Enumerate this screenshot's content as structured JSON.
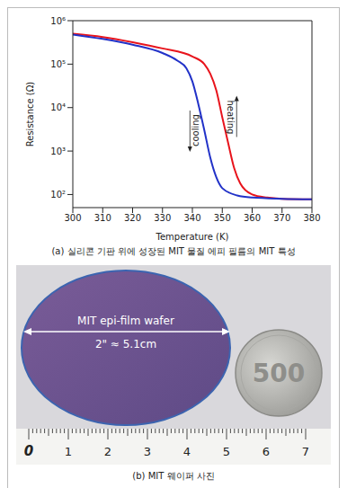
{
  "chart_data": {
    "type": "line",
    "title": "(a) 실리콘 기판 위에 성장된 MIT 물질 에피 필름의 MIT 특성",
    "x_label": "Temperature (K)",
    "y_label": "Resistance (Ω)",
    "log": "y",
    "grid": false,
    "xlim": [
      300,
      380
    ],
    "xticks": [
      300,
      310,
      320,
      330,
      340,
      350,
      360,
      370,
      380
    ],
    "ylim": [
      50,
      1000000
    ],
    "yticks": [
      {
        "value": 100,
        "label": "10²"
      },
      {
        "value": 1000,
        "label": "10³"
      },
      {
        "value": 10000,
        "label": "10⁴"
      },
      {
        "value": 100000,
        "label": "10⁵"
      },
      {
        "value": 1000000,
        "label": "10⁶"
      }
    ],
    "series": [
      {
        "name": "heating",
        "color": "#e8141c",
        "x": [
          300,
          310,
          320,
          330,
          340,
          344,
          346,
          348,
          350,
          352,
          354,
          356,
          360,
          365,
          370,
          380
        ],
        "values": [
          500000,
          420000,
          320000,
          230000,
          150000,
          100000,
          60000,
          25000,
          6000,
          1500,
          400,
          180,
          100,
          85,
          80,
          78
        ]
      },
      {
        "name": "cooling",
        "color": "#2232c8",
        "x": [
          300,
          310,
          320,
          330,
          335,
          338,
          340,
          342,
          344,
          346,
          348,
          350,
          355,
          360,
          370,
          380
        ],
        "values": [
          480000,
          380000,
          280000,
          180000,
          120000,
          80000,
          40000,
          12000,
          3000,
          700,
          250,
          140,
          95,
          85,
          80,
          78
        ]
      }
    ]
  },
  "photo": {
    "label": "MIT epi-film wafer",
    "size": "2\" ≈ 5.1cm",
    "coin": "500",
    "ruler_labels": [
      0,
      1,
      2,
      3,
      4,
      5,
      6,
      7
    ],
    "caption": "(b) MIT 웨이퍼 사진"
  }
}
